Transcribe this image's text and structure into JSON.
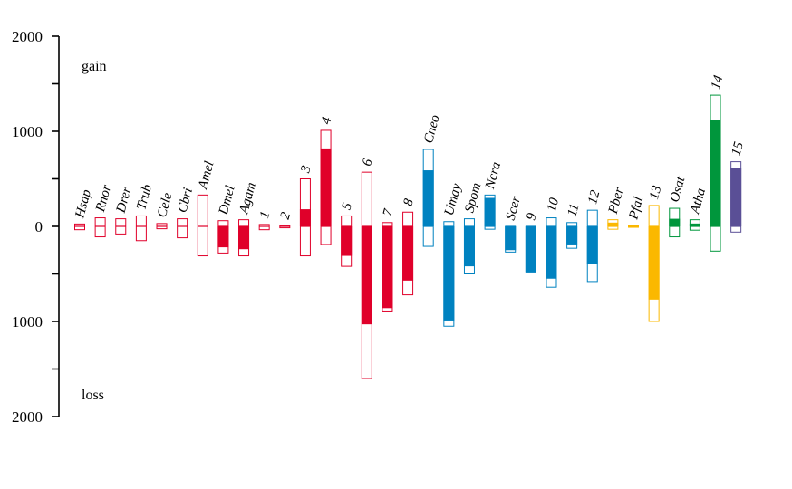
{
  "chart_data": {
    "type": "bar",
    "title": "",
    "xlabel": "",
    "ylabel": "",
    "ylim": [
      -2000,
      2000
    ],
    "y_ticks": [
      2000,
      1500,
      1000,
      500,
      0,
      -500,
      -1000,
      -1500,
      -2000
    ],
    "y_tick_labels": [
      "2000",
      "",
      "1000",
      "",
      "0",
      "",
      "1000",
      "",
      "2000"
    ],
    "annotations": {
      "top": "gain",
      "bottom": "loss"
    },
    "colors": {
      "red": "#e0002a",
      "blue": "#0082c0",
      "yellow": "#fbb800",
      "green": "#00963c",
      "purple": "#5a4f96"
    },
    "categories": [
      {
        "label": "Hsap",
        "color": "red",
        "gain_outline": 25,
        "loss_outline": 35,
        "gain_fill": 0,
        "loss_fill": 0
      },
      {
        "label": "Rnor",
        "color": "red",
        "gain_outline": 90,
        "loss_outline": 110,
        "gain_fill": 0,
        "loss_fill": 0
      },
      {
        "label": "Drer",
        "color": "red",
        "gain_outline": 80,
        "loss_outline": 80,
        "gain_fill": 0,
        "loss_fill": 0
      },
      {
        "label": "Trub",
        "color": "red",
        "gain_outline": 110,
        "loss_outline": 150,
        "gain_fill": 0,
        "loss_fill": 0
      },
      {
        "label": "Cele",
        "color": "red",
        "gain_outline": 30,
        "loss_outline": 25,
        "gain_fill": 0,
        "loss_fill": 0
      },
      {
        "label": "Cbri",
        "color": "red",
        "gain_outline": 80,
        "loss_outline": 120,
        "gain_fill": 0,
        "loss_fill": 0
      },
      {
        "label": "Amel",
        "color": "red",
        "gain_outline": 330,
        "loss_outline": 310,
        "gain_fill": 0,
        "loss_fill": 0
      },
      {
        "label": "Dmel",
        "color": "red",
        "gain_outline": 60,
        "loss_outline": 280,
        "gain_fill": 0,
        "loss_fill": 220
      },
      {
        "label": "Agam",
        "color": "red",
        "gain_outline": 70,
        "loss_outline": 310,
        "gain_fill": 0,
        "loss_fill": 240
      },
      {
        "label": "1",
        "color": "red",
        "gain_outline": 20,
        "loss_outline": 35,
        "gain_fill": 0,
        "loss_fill": 0
      },
      {
        "label": "2",
        "color": "red",
        "gain_outline": 10,
        "loss_outline": 15,
        "gain_fill": 0,
        "loss_fill": 0
      },
      {
        "label": "3",
        "color": "red",
        "gain_outline": 500,
        "loss_outline": 310,
        "gain_fill": 180,
        "loss_fill": 0
      },
      {
        "label": "4",
        "color": "red",
        "gain_outline": 1010,
        "loss_outline": 190,
        "gain_fill": 820,
        "loss_fill": 0
      },
      {
        "label": "5",
        "color": "red",
        "gain_outline": 110,
        "loss_outline": 420,
        "gain_fill": 0,
        "loss_fill": 310
      },
      {
        "label": "6",
        "color": "red",
        "gain_outline": 570,
        "loss_outline": 1600,
        "gain_fill": 0,
        "loss_fill": 1030
      },
      {
        "label": "7",
        "color": "red",
        "gain_outline": 40,
        "loss_outline": 890,
        "gain_fill": 0,
        "loss_fill": 860
      },
      {
        "label": "8",
        "color": "red",
        "gain_outline": 150,
        "loss_outline": 720,
        "gain_fill": 0,
        "loss_fill": 570
      },
      {
        "label": "Cneo",
        "color": "blue",
        "gain_outline": 810,
        "loss_outline": 210,
        "gain_fill": 590,
        "loss_fill": 0
      },
      {
        "label": "Umay",
        "color": "blue",
        "gain_outline": 50,
        "loss_outline": 1050,
        "gain_fill": 0,
        "loss_fill": 990
      },
      {
        "label": "Spom",
        "color": "blue",
        "gain_outline": 80,
        "loss_outline": 500,
        "gain_fill": 0,
        "loss_fill": 420
      },
      {
        "label": "Ncra",
        "color": "blue",
        "gain_outline": 330,
        "loss_outline": 30,
        "gain_fill": 300,
        "loss_fill": 0
      },
      {
        "label": "Scer",
        "color": "blue",
        "gain_outline": 0,
        "loss_outline": 270,
        "gain_fill": 0,
        "loss_fill": 250
      },
      {
        "label": "9",
        "color": "blue",
        "gain_outline": 0,
        "loss_outline": 480,
        "gain_fill": 0,
        "loss_fill": 480
      },
      {
        "label": "10",
        "color": "blue",
        "gain_outline": 90,
        "loss_outline": 640,
        "gain_fill": 0,
        "loss_fill": 550
      },
      {
        "label": "11",
        "color": "blue",
        "gain_outline": 40,
        "loss_outline": 230,
        "gain_fill": 0,
        "loss_fill": 190
      },
      {
        "label": "12",
        "color": "blue",
        "gain_outline": 170,
        "loss_outline": 580,
        "gain_fill": 0,
        "loss_fill": 400
      },
      {
        "label": "Pber",
        "color": "yellow",
        "gain_outline": 70,
        "loss_outline": 30,
        "gain_fill": 40,
        "loss_fill": 0
      },
      {
        "label": "Pfal",
        "color": "yellow",
        "gain_outline": 10,
        "loss_outline": 10,
        "gain_fill": 10,
        "loss_fill": 10
      },
      {
        "label": "13",
        "color": "yellow",
        "gain_outline": 220,
        "loss_outline": 1000,
        "gain_fill": 0,
        "loss_fill": 770
      },
      {
        "label": "Osat",
        "color": "green",
        "gain_outline": 190,
        "loss_outline": 110,
        "gain_fill": 80,
        "loss_fill": 0
      },
      {
        "label": "Atha",
        "color": "green",
        "gain_outline": 70,
        "loss_outline": 40,
        "gain_fill": 30,
        "loss_fill": 0
      },
      {
        "label": "14",
        "color": "green",
        "gain_outline": 1380,
        "loss_outline": 260,
        "gain_fill": 1120,
        "loss_fill": 0
      },
      {
        "label": "15",
        "color": "purple",
        "gain_outline": 680,
        "loss_outline": 60,
        "gain_fill": 610,
        "loss_fill": 0
      }
    ]
  }
}
